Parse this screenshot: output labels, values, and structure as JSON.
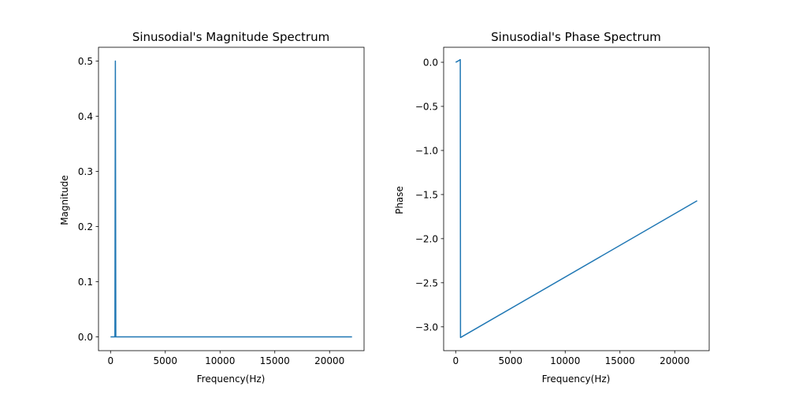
{
  "chart_data": [
    {
      "type": "line",
      "title": "Sinusodial's Magnitude Spectrum",
      "xlabel": "Frequency(Hz)",
      "ylabel": "Magnitude",
      "xlim": [
        -1100,
        23150
      ],
      "ylim": [
        -0.025,
        0.525
      ],
      "xticks": [
        0,
        5000,
        10000,
        15000,
        20000
      ],
      "yticks": [
        0.0,
        0.1,
        0.2,
        0.3,
        0.4,
        0.5
      ],
      "xtick_labels": [
        "0",
        "5000",
        "10000",
        "15000",
        "20000"
      ],
      "ytick_labels": [
        "0.0",
        "0.1",
        "0.2",
        "0.3",
        "0.4",
        "0.5"
      ],
      "grid": false,
      "series": [
        {
          "color": "#1f77b4",
          "x": [
            0,
            250,
            400,
            440,
            480,
            600,
            22050
          ],
          "y": [
            0.0,
            0.0,
            0.0,
            0.5,
            0.0,
            0.0,
            0.0
          ]
        }
      ]
    },
    {
      "type": "line",
      "title": "Sinusodial's Phase Spectrum",
      "xlabel": "Frequency(Hz)",
      "ylabel": "Phase",
      "xlim": [
        -1100,
        23150
      ],
      "ylim": [
        -3.27,
        0.17
      ],
      "xticks": [
        0,
        5000,
        10000,
        15000,
        20000
      ],
      "yticks": [
        0.0,
        -0.5,
        -1.0,
        -1.5,
        -2.0,
        -2.5,
        -3.0
      ],
      "xtick_labels": [
        "0",
        "5000",
        "10000",
        "15000",
        "20000"
      ],
      "ytick_labels": [
        "0.0",
        "−0.5",
        "−1.0",
        "−1.5",
        "−2.0",
        "−2.5",
        "−3.0"
      ],
      "grid": false,
      "series": [
        {
          "color": "#1f77b4",
          "x": [
            0,
            150,
            300,
            420,
            440,
            460,
            22050
          ],
          "y": [
            0.0,
            0.01,
            0.02,
            0.03,
            -3.12,
            -3.12,
            -1.57
          ]
        }
      ]
    }
  ]
}
